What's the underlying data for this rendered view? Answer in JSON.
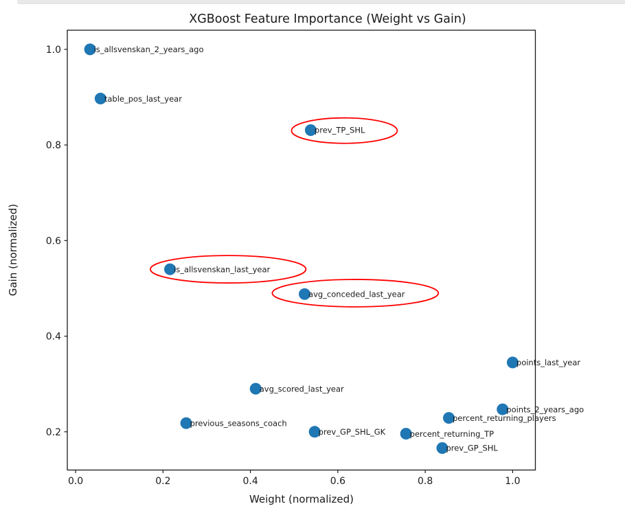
{
  "top_strip": {
    "color": "#e9e9e9"
  },
  "chart_data": {
    "type": "scatter",
    "title": "XGBoost Feature Importance (Weight vs Gain)",
    "xlabel": "Weight (normalized)",
    "ylabel": "Gain (normalized)",
    "grid": false,
    "legend": null,
    "marker_color": "#1f77b4",
    "annotation_color": "#ff0000",
    "xlim": [
      -0.019,
      1.052
    ],
    "ylim": [
      0.12,
      1.04
    ],
    "x_tick_values": [
      0.0,
      0.2,
      0.4,
      0.6,
      0.8,
      1.0
    ],
    "x_tick_labels": [
      "0.0",
      "0.2",
      "0.4",
      "0.6",
      "0.8",
      "1.0"
    ],
    "y_tick_values": [
      0.2,
      0.4,
      0.6,
      0.8,
      1.0
    ],
    "y_tick_labels": [
      "0.2",
      "0.4",
      "0.6",
      "0.8",
      "1.0"
    ],
    "points": [
      {
        "label": "is_allsvenskan_2_years_ago",
        "weight": 0.033,
        "gain": 1.0,
        "circled": false
      },
      {
        "label": "table_pos_last_year",
        "weight": 0.057,
        "gain": 0.897,
        "circled": false
      },
      {
        "label": "prev_TP_SHL",
        "weight": 0.538,
        "gain": 0.831,
        "circled": true
      },
      {
        "label": "is_allsvenskan_last_year",
        "weight": 0.216,
        "gain": 0.54,
        "circled": true
      },
      {
        "label": "avg_conceded_last_year",
        "weight": 0.524,
        "gain": 0.488,
        "circled": true
      },
      {
        "label": "points_last_year",
        "weight": 1.0,
        "gain": 0.345,
        "circled": false
      },
      {
        "label": "avg_scored_last_year",
        "weight": 0.412,
        "gain": 0.29,
        "circled": false
      },
      {
        "label": "points_2_years_ago",
        "weight": 0.977,
        "gain": 0.247,
        "circled": false
      },
      {
        "label": "percent_returning_players",
        "weight": 0.854,
        "gain": 0.229,
        "circled": false
      },
      {
        "label": "previous_seasons_coach",
        "weight": 0.253,
        "gain": 0.218,
        "circled": false
      },
      {
        "label": "prev_GP_SHL_GK",
        "weight": 0.547,
        "gain": 0.2,
        "circled": false
      },
      {
        "label": "percent_returning_TP",
        "weight": 0.756,
        "gain": 0.196,
        "circled": false
      },
      {
        "label": "prev_GP_SHL",
        "weight": 0.839,
        "gain": 0.166,
        "circled": false
      }
    ],
    "annotations": [
      {
        "type": "ellipse",
        "highlights": "prev_TP_SHL",
        "cx": 0.615,
        "cy": 0.83,
        "rx": 0.121,
        "ry": 0.0266
      },
      {
        "type": "ellipse",
        "highlights": "is_allsvenskan_last_year",
        "cx": 0.349,
        "cy": 0.54,
        "rx": 0.178,
        "ry": 0.0287
      },
      {
        "type": "ellipse",
        "highlights": "avg_conceded_last_year",
        "cx": 0.64,
        "cy": 0.49,
        "rx": 0.19,
        "ry": 0.0287
      }
    ]
  }
}
